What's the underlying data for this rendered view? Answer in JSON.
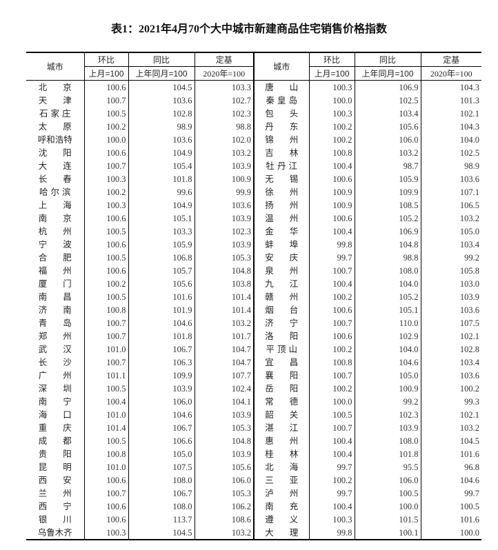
{
  "title": "表1：2021年4月70个大中城市新建商品住宅销售价格指数",
  "headers": {
    "city": "城市",
    "hb": "环比",
    "tb": "同比",
    "dj": "定基",
    "hb_sub": "上月=100",
    "tb_sub": "上年同月=100",
    "dj_sub": "2020年=100"
  },
  "left_rows": [
    [
      "北京",
      "100.6",
      "104.5",
      "103.3"
    ],
    [
      "天津",
      "100.7",
      "103.6",
      "102.7"
    ],
    [
      "石家庄",
      "100.5",
      "102.8",
      "102.3"
    ],
    [
      "太原",
      "100.2",
      "98.9",
      "98.8"
    ],
    [
      "呼和浩特",
      "100.0",
      "103.6",
      "102.0"
    ],
    [
      "沈阳",
      "100.6",
      "104.9",
      "103.2"
    ],
    [
      "大连",
      "100.7",
      "105.4",
      "103.9"
    ],
    [
      "长春",
      "100.3",
      "101.8",
      "100.9"
    ],
    [
      "哈尔滨",
      "100.2",
      "99.6",
      "99.9"
    ],
    [
      "上海",
      "100.3",
      "104.9",
      "103.6"
    ],
    [
      "南京",
      "100.6",
      "105.1",
      "103.9"
    ],
    [
      "杭州",
      "100.5",
      "103.3",
      "102.3"
    ],
    [
      "宁波",
      "100.6",
      "105.9",
      "103.9"
    ],
    [
      "合肥",
      "100.5",
      "106.8",
      "105.3"
    ],
    [
      "福州",
      "100.6",
      "105.7",
      "104.8"
    ],
    [
      "厦门",
      "100.2",
      "105.6",
      "103.8"
    ],
    [
      "南昌",
      "100.5",
      "101.6",
      "101.4"
    ],
    [
      "济南",
      "100.8",
      "101.9",
      "101.4"
    ],
    [
      "青岛",
      "100.7",
      "104.6",
      "103.2"
    ],
    [
      "郑州",
      "100.7",
      "101.8",
      "101.7"
    ],
    [
      "武汉",
      "101.0",
      "106.7",
      "104.7"
    ],
    [
      "长沙",
      "100.7",
      "106.3",
      "104.7"
    ],
    [
      "广州",
      "101.1",
      "109.9",
      "107.7"
    ],
    [
      "深圳",
      "100.5",
      "103.9",
      "102.4"
    ],
    [
      "南宁",
      "100.4",
      "106.0",
      "104.1"
    ],
    [
      "海口",
      "101.0",
      "104.6",
      "103.9"
    ],
    [
      "重庆",
      "101.4",
      "106.7",
      "105.3"
    ],
    [
      "成都",
      "100.5",
      "106.6",
      "104.8"
    ],
    [
      "贵阳",
      "100.8",
      "105.0",
      "103.9"
    ],
    [
      "昆明",
      "101.0",
      "107.5",
      "105.6"
    ],
    [
      "西安",
      "100.6",
      "108.0",
      "106.0"
    ],
    [
      "兰州",
      "100.7",
      "106.7",
      "105.3"
    ],
    [
      "西宁",
      "100.6",
      "108.0",
      "106.2"
    ],
    [
      "银川",
      "100.6",
      "113.7",
      "108.6"
    ],
    [
      "乌鲁木齐",
      "100.3",
      "104.5",
      "103.2"
    ]
  ],
  "right_rows": [
    [
      "唐山",
      "100.3",
      "106.9",
      "104.3"
    ],
    [
      "秦皇岛",
      "100.0",
      "102.5",
      "101.3"
    ],
    [
      "包头",
      "100.3",
      "103.4",
      "102.1"
    ],
    [
      "丹东",
      "100.2",
      "105.6",
      "104.3"
    ],
    [
      "锦州",
      "100.2",
      "106.0",
      "104.0"
    ],
    [
      "吉林",
      "100.8",
      "103.2",
      "102.5"
    ],
    [
      "牡丹江",
      "100.4",
      "98.7",
      "98.9"
    ],
    [
      "无锡",
      "100.6",
      "105.9",
      "103.6"
    ],
    [
      "徐州",
      "100.9",
      "109.9",
      "107.1"
    ],
    [
      "扬州",
      "100.9",
      "108.5",
      "106.5"
    ],
    [
      "温州",
      "100.6",
      "105.2",
      "103.2"
    ],
    [
      "金华",
      "100.4",
      "106.9",
      "105.0"
    ],
    [
      "蚌埠",
      "99.8",
      "104.8",
      "103.4"
    ],
    [
      "安庆",
      "99.7",
      "98.8",
      "99.2"
    ],
    [
      "泉州",
      "100.7",
      "108.0",
      "105.8"
    ],
    [
      "九江",
      "100.4",
      "104.0",
      "103.0"
    ],
    [
      "赣州",
      "100.2",
      "105.2",
      "103.9"
    ],
    [
      "烟台",
      "100.6",
      "105.1",
      "103.6"
    ],
    [
      "济宁",
      "100.7",
      "110.0",
      "107.5"
    ],
    [
      "洛阳",
      "100.6",
      "102.9",
      "102.1"
    ],
    [
      "平顶山",
      "100.2",
      "104.0",
      "102.8"
    ],
    [
      "宜昌",
      "100.8",
      "104.6",
      "103.4"
    ],
    [
      "襄阳",
      "100.7",
      "105.0",
      "103.6"
    ],
    [
      "岳阳",
      "100.2",
      "100.9",
      "100.2"
    ],
    [
      "常德",
      "100.0",
      "99.2",
      "99.3"
    ],
    [
      "韶关",
      "100.5",
      "102.3",
      "102.1"
    ],
    [
      "湛江",
      "100.7",
      "103.9",
      "103.2"
    ],
    [
      "惠州",
      "100.4",
      "108.0",
      "104.5"
    ],
    [
      "桂林",
      "100.4",
      "101.8",
      "101.6"
    ],
    [
      "北海",
      "99.7",
      "95.5",
      "96.8"
    ],
    [
      "三亚",
      "100.2",
      "106.0",
      "104.6"
    ],
    [
      "泸州",
      "99.7",
      "100.5",
      "99.7"
    ],
    [
      "南充",
      "100.4",
      "100.0",
      "100.5"
    ],
    [
      "遵义",
      "100.3",
      "101.5",
      "101.6"
    ],
    [
      "大理",
      "99.8",
      "100.1",
      "100.0"
    ]
  ]
}
